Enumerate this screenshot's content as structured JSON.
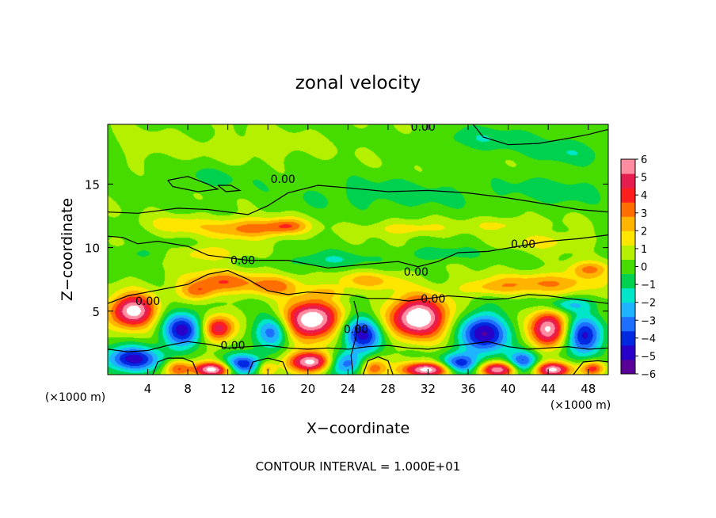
{
  "chart_data": {
    "type": "heatmap",
    "title": "zonal velocity",
    "xlabel": "X−coordinate",
    "ylabel": "Z−coordinate",
    "x_unit_left": "(×1000 m)",
    "x_unit_right": "(×1000 m)",
    "footer": "CONTOUR INTERVAL = 1.000E+01",
    "xlim": [
      0,
      50
    ],
    "ylim": [
      0,
      19.7
    ],
    "x_ticks": [
      4,
      8,
      12,
      16,
      20,
      24,
      28,
      32,
      36,
      40,
      44,
      48
    ],
    "y_ticks": [
      5,
      10,
      15
    ],
    "colorbar": {
      "range": [
        -6,
        6
      ],
      "ticks": [
        "6",
        "5",
        "4",
        "3",
        "2",
        "1",
        "0",
        "−1",
        "−2",
        "−3",
        "−4",
        "−5",
        "−6"
      ],
      "colors": [
        "#5a0099",
        "#2800c8",
        "#0028e0",
        "#1e6eff",
        "#1eb4ff",
        "#00e6c8",
        "#00d250",
        "#46dc00",
        "#b4f000",
        "#ffe600",
        "#ffb400",
        "#ff6e00",
        "#ff1e1e",
        "#e61e50",
        "#ff8ca0"
      ]
    },
    "contour_labels": [
      {
        "text": "0.00",
        "x": 31.5,
        "y": 19.5
      },
      {
        "text": "0.00",
        "x": 17.5,
        "y": 15.4
      },
      {
        "text": "0.00",
        "x": 41.5,
        "y": 10.3
      },
      {
        "text": "0.00",
        "x": 13.5,
        "y": 9.0
      },
      {
        "text": "0.00",
        "x": 30.8,
        "y": 8.1
      },
      {
        "text": "0.00",
        "x": 32.5,
        "y": 6.0
      },
      {
        "text": "0.00",
        "x": 4.0,
        "y": 5.8
      },
      {
        "text": "0.00",
        "x": 24.8,
        "y": 3.6
      },
      {
        "text": "0.00",
        "x": 12.5,
        "y": 2.3
      }
    ],
    "blobs": [
      {
        "x": 2.5,
        "y": 5.0,
        "v": 6.5,
        "rx": 2.3,
        "ry": 1.3
      },
      {
        "x": 11.0,
        "y": 3.6,
        "v": 5.0,
        "rx": 1.6,
        "ry": 1.0
      },
      {
        "x": 20.3,
        "y": 4.3,
        "v": 7.0,
        "rx": 2.8,
        "ry": 1.5
      },
      {
        "x": 31.0,
        "y": 4.5,
        "v": 7.0,
        "rx": 3.0,
        "ry": 1.6
      },
      {
        "x": 44.0,
        "y": 3.6,
        "v": 6.0,
        "rx": 1.8,
        "ry": 1.5
      },
      {
        "x": 10.5,
        "y": 0.4,
        "v": 6.5,
        "rx": 2.0,
        "ry": 0.6
      },
      {
        "x": 20.5,
        "y": 1.0,
        "v": 6.5,
        "rx": 2.5,
        "ry": 0.8
      },
      {
        "x": 32.0,
        "y": 0.4,
        "v": 6.5,
        "rx": 2.5,
        "ry": 0.6
      },
      {
        "x": 39.0,
        "y": 0.4,
        "v": 6.0,
        "rx": 2.0,
        "ry": 0.6
      },
      {
        "x": 44.5,
        "y": 0.4,
        "v": 6.0,
        "rx": 1.8,
        "ry": 0.6
      },
      {
        "x": 7.0,
        "y": 0.5,
        "v": 3.5,
        "rx": 1.3,
        "ry": 0.7
      },
      {
        "x": 26.5,
        "y": 0.5,
        "v": 3.5,
        "rx": 1.3,
        "ry": 0.8
      },
      {
        "x": 15.8,
        "y": 0.5,
        "v": 2.5,
        "rx": 1.0,
        "ry": 0.6
      },
      {
        "x": 48.5,
        "y": 0.5,
        "v": 4.0,
        "rx": 1.2,
        "ry": 0.6
      },
      {
        "x": 7.5,
        "y": 3.5,
        "v": -5.0,
        "rx": 2.0,
        "ry": 1.4
      },
      {
        "x": 16.5,
        "y": 3.4,
        "v": -4.0,
        "rx": 1.8,
        "ry": 1.2
      },
      {
        "x": 25.5,
        "y": 3.2,
        "v": -5.0,
        "rx": 2.0,
        "ry": 1.4
      },
      {
        "x": 37.5,
        "y": 3.2,
        "v": -5.5,
        "rx": 2.4,
        "ry": 1.6
      },
      {
        "x": 47.5,
        "y": 3.0,
        "v": -5.0,
        "rx": 1.8,
        "ry": 1.5
      },
      {
        "x": 2.5,
        "y": 1.2,
        "v": -5.0,
        "rx": 2.8,
        "ry": 1.0
      },
      {
        "x": 13.5,
        "y": 0.8,
        "v": -5.0,
        "rx": 2.0,
        "ry": 0.8
      },
      {
        "x": 23.5,
        "y": 0.9,
        "v": -4.5,
        "rx": 2.0,
        "ry": 0.9
      },
      {
        "x": 35.0,
        "y": 0.8,
        "v": -4.5,
        "rx": 2.0,
        "ry": 0.8
      },
      {
        "x": 41.5,
        "y": 1.0,
        "v": -4.5,
        "rx": 1.5,
        "ry": 0.9
      },
      {
        "x": 11.5,
        "y": 7.3,
        "v": 3.0,
        "rx": 4.0,
        "ry": 0.9
      },
      {
        "x": 9.0,
        "y": 6.5,
        "v": 2.5,
        "rx": 1.8,
        "ry": 0.7
      },
      {
        "x": 17.0,
        "y": 7.0,
        "v": 2.5,
        "rx": 2.5,
        "ry": 0.8
      },
      {
        "x": 26.0,
        "y": 7.4,
        "v": 2.0,
        "rx": 3.5,
        "ry": 0.7
      },
      {
        "x": 44.0,
        "y": 7.2,
        "v": 2.5,
        "rx": 6.0,
        "ry": 0.8
      },
      {
        "x": 48.0,
        "y": 8.3,
        "v": 2.5,
        "rx": 2.0,
        "ry": 0.6
      },
      {
        "x": 38.0,
        "y": 6.8,
        "v": 1.5,
        "rx": 3.0,
        "ry": 0.6
      },
      {
        "x": 22.0,
        "y": 6.5,
        "v": 1.5,
        "rx": 2.0,
        "ry": 0.5
      },
      {
        "x": 14.0,
        "y": 11.5,
        "v": 3.0,
        "rx": 4.0,
        "ry": 0.8
      },
      {
        "x": 18.0,
        "y": 11.7,
        "v": 2.5,
        "rx": 2.0,
        "ry": 0.6
      },
      {
        "x": 7.0,
        "y": 11.8,
        "v": 1.5,
        "rx": 3.0,
        "ry": 0.7
      },
      {
        "x": 30.0,
        "y": 11.5,
        "v": 1.5,
        "rx": 4.0,
        "ry": 0.6
      },
      {
        "x": 40.0,
        "y": 11.8,
        "v": 1.2,
        "rx": 4.0,
        "ry": 0.6
      },
      {
        "x": 10.0,
        "y": 9.5,
        "v": 1.8,
        "rx": 3.0,
        "ry": 0.6
      },
      {
        "x": 44.0,
        "y": 10.5,
        "v": 1.2,
        "rx": 4.0,
        "ry": 0.7
      },
      {
        "x": 22.0,
        "y": 9.0,
        "v": -1.5,
        "rx": 4.0,
        "ry": 0.7
      },
      {
        "x": 33.0,
        "y": 9.5,
        "v": -1.2,
        "rx": 4.0,
        "ry": 0.6
      },
      {
        "x": 3.0,
        "y": 9.5,
        "v": -0.8,
        "rx": 3.0,
        "ry": 0.6
      },
      {
        "x": 46.0,
        "y": 5.5,
        "v": -2.5,
        "rx": 2.5,
        "ry": 0.6
      },
      {
        "x": 28.0,
        "y": 14.2,
        "v": -1.0,
        "rx": 10.0,
        "ry": 1.4
      },
      {
        "x": 10.0,
        "y": 15.5,
        "v": -0.7,
        "rx": 6.0,
        "ry": 1.0
      },
      {
        "x": 45.0,
        "y": 14.5,
        "v": -1.0,
        "rx": 6.0,
        "ry": 1.2
      },
      {
        "x": 38.0,
        "y": 18.5,
        "v": -1.3,
        "rx": 6.0,
        "ry": 1.0
      },
      {
        "x": 46.0,
        "y": 17.5,
        "v": -1.2,
        "rx": 4.0,
        "ry": 1.0
      },
      {
        "x": 15.0,
        "y": 18.0,
        "v": 0.6,
        "rx": 6.0,
        "ry": 1.2
      },
      {
        "x": 4.0,
        "y": 18.0,
        "v": 0.5,
        "rx": 4.0,
        "ry": 1.2
      }
    ],
    "zero_contours": [
      [
        [
          0,
          12.8
        ],
        [
          3,
          12.7
        ],
        [
          7,
          13.1
        ],
        [
          10,
          13.0
        ],
        [
          14,
          12.6
        ],
        [
          16,
          13.3
        ],
        [
          18,
          14.3
        ],
        [
          21,
          14.9
        ],
        [
          24,
          14.7
        ],
        [
          28,
          14.4
        ],
        [
          32,
          14.5
        ],
        [
          36,
          14.3
        ],
        [
          40,
          13.9
        ],
        [
          44,
          13.4
        ],
        [
          47,
          13.0
        ],
        [
          50,
          12.8
        ]
      ],
      [
        [
          36.5,
          19.7
        ],
        [
          37.5,
          18.7
        ],
        [
          40,
          18.1
        ],
        [
          43,
          18.2
        ],
        [
          46,
          18.6
        ],
        [
          48,
          18.9
        ],
        [
          50,
          19.3
        ]
      ],
      [
        [
          6,
          15.3
        ],
        [
          8,
          15.6
        ],
        [
          10,
          15.0
        ],
        [
          11,
          14.6
        ],
        [
          9,
          14.4
        ],
        [
          6.5,
          14.8
        ],
        [
          6,
          15.3
        ]
      ],
      [
        [
          11,
          14.9
        ],
        [
          12.3,
          14.9
        ],
        [
          13.2,
          14.5
        ],
        [
          11.8,
          14.4
        ],
        [
          11,
          14.9
        ]
      ],
      [
        [
          0,
          10.9
        ],
        [
          1.5,
          10.8
        ],
        [
          3,
          10.3
        ],
        [
          5,
          10.5
        ],
        [
          8,
          10.1
        ],
        [
          10,
          9.4
        ],
        [
          14,
          9.0
        ],
        [
          18,
          9.0
        ],
        [
          22,
          8.4
        ],
        [
          26,
          8.7
        ],
        [
          29,
          8.9
        ],
        [
          31,
          8.5
        ],
        [
          33,
          8.9
        ],
        [
          35,
          9.6
        ],
        [
          38,
          9.7
        ],
        [
          41,
          10.1
        ],
        [
          44,
          10.5
        ],
        [
          47,
          10.7
        ],
        [
          50,
          11.0
        ]
      ],
      [
        [
          0,
          5.6
        ],
        [
          2,
          6.2
        ],
        [
          4,
          6.5
        ],
        [
          6,
          6.8
        ],
        [
          8,
          7.1
        ],
        [
          10,
          7.9
        ],
        [
          12,
          8.2
        ],
        [
          14,
          7.5
        ],
        [
          16,
          6.6
        ],
        [
          18,
          6.3
        ],
        [
          20,
          6.5
        ],
        [
          22,
          6.4
        ],
        [
          24,
          6.3
        ],
        [
          26,
          6.0
        ],
        [
          28,
          6.0
        ],
        [
          30,
          5.8
        ],
        [
          32,
          6.0
        ],
        [
          34,
          6.2
        ],
        [
          36,
          6.1
        ],
        [
          38,
          5.9
        ],
        [
          40,
          6.0
        ],
        [
          42,
          6.3
        ],
        [
          44,
          6.2
        ],
        [
          46,
          6.0
        ],
        [
          48,
          5.8
        ],
        [
          50,
          5.6
        ]
      ],
      [
        [
          0,
          2.0
        ],
        [
          2,
          1.8
        ],
        [
          4,
          1.9
        ],
        [
          6,
          2.3
        ],
        [
          8,
          2.6
        ],
        [
          10,
          2.4
        ],
        [
          12,
          2.1
        ],
        [
          14,
          2.2
        ],
        [
          16,
          2.3
        ],
        [
          18,
          2.1
        ],
        [
          20,
          2.0
        ],
        [
          22,
          2.1
        ],
        [
          24,
          2.0
        ],
        [
          26,
          2.2
        ],
        [
          28,
          2.3
        ],
        [
          30,
          2.1
        ],
        [
          32,
          2.0
        ],
        [
          34,
          2.2
        ],
        [
          36,
          2.4
        ],
        [
          38,
          2.6
        ],
        [
          40,
          2.2
        ],
        [
          42,
          2.0
        ],
        [
          44,
          2.1
        ],
        [
          46,
          2.2
        ],
        [
          48,
          2.0
        ],
        [
          50,
          2.1
        ]
      ],
      [
        [
          24.5,
          0
        ],
        [
          24.3,
          1.5
        ],
        [
          24.8,
          3.0
        ],
        [
          25.0,
          4.6
        ],
        [
          24.6,
          5.8
        ]
      ],
      [
        [
          4.5,
          0
        ],
        [
          5.0,
          1.0
        ],
        [
          6.0,
          1.3
        ],
        [
          7.5,
          1.3
        ],
        [
          8.5,
          1.0
        ],
        [
          9.0,
          0
        ]
      ],
      [
        [
          14.0,
          0
        ],
        [
          14.5,
          1.0
        ],
        [
          16.0,
          1.3
        ],
        [
          17.5,
          1.0
        ],
        [
          18.0,
          0
        ]
      ],
      [
        [
          25.5,
          0
        ],
        [
          26.0,
          1.1
        ],
        [
          27.0,
          1.4
        ],
        [
          28.0,
          1.1
        ],
        [
          28.5,
          0
        ]
      ],
      [
        [
          46.5,
          0
        ],
        [
          47.5,
          1.0
        ],
        [
          49.0,
          1.1
        ],
        [
          50.0,
          1.0
        ]
      ]
    ]
  }
}
